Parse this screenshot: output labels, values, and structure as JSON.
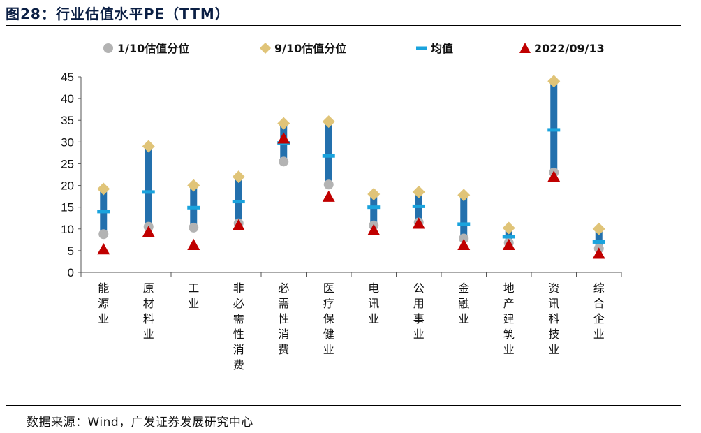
{
  "figure": {
    "title": "图28：行业估值水平PE（TTM）",
    "source": "数据来源：Wind，广发证券发展研究中心"
  },
  "chart_data": {
    "type": "range",
    "title": "行业估值水平PE（TTM）",
    "ylim": [
      0,
      45
    ],
    "yticks": [
      0,
      5,
      10,
      15,
      20,
      25,
      30,
      35,
      40,
      45
    ],
    "categories": [
      "能源业",
      "原材料业",
      "工业",
      "非必需性消费",
      "必需性消费",
      "医疗保健业",
      "电讯业",
      "公用事业",
      "金融业",
      "地产建筑业",
      "资讯科技业",
      "综合企业"
    ],
    "series": [
      {
        "name": "1/10估值分位",
        "color": "#b3b3b3",
        "marker": "circle",
        "values": [
          8.8,
          10.5,
          10.3,
          11.3,
          25.5,
          20.2,
          10.8,
          11.5,
          7.8,
          6.8,
          23.0,
          5.5
        ]
      },
      {
        "name": "9/10估值分位",
        "color": "#e0c478",
        "marker": "diamond",
        "values": [
          19.2,
          29.0,
          20.0,
          22.0,
          34.3,
          34.7,
          18.0,
          18.5,
          17.8,
          10.2,
          44.0,
          10.0
        ]
      },
      {
        "name": "均值",
        "color": "#1aa3dd",
        "marker": "dash",
        "values": [
          14.0,
          18.5,
          14.9,
          16.3,
          29.8,
          26.8,
          15.0,
          15.2,
          11.1,
          8.2,
          32.8,
          7.0
        ]
      },
      {
        "name": "2022/09/13",
        "color": "#c00000",
        "marker": "triangle",
        "values": [
          5.3,
          9.3,
          6.3,
          10.8,
          30.8,
          17.4,
          9.7,
          11.2,
          6.3,
          6.3,
          22.0,
          4.3
        ]
      }
    ],
    "bar_color": "#2370ad",
    "legend_position": "top"
  }
}
